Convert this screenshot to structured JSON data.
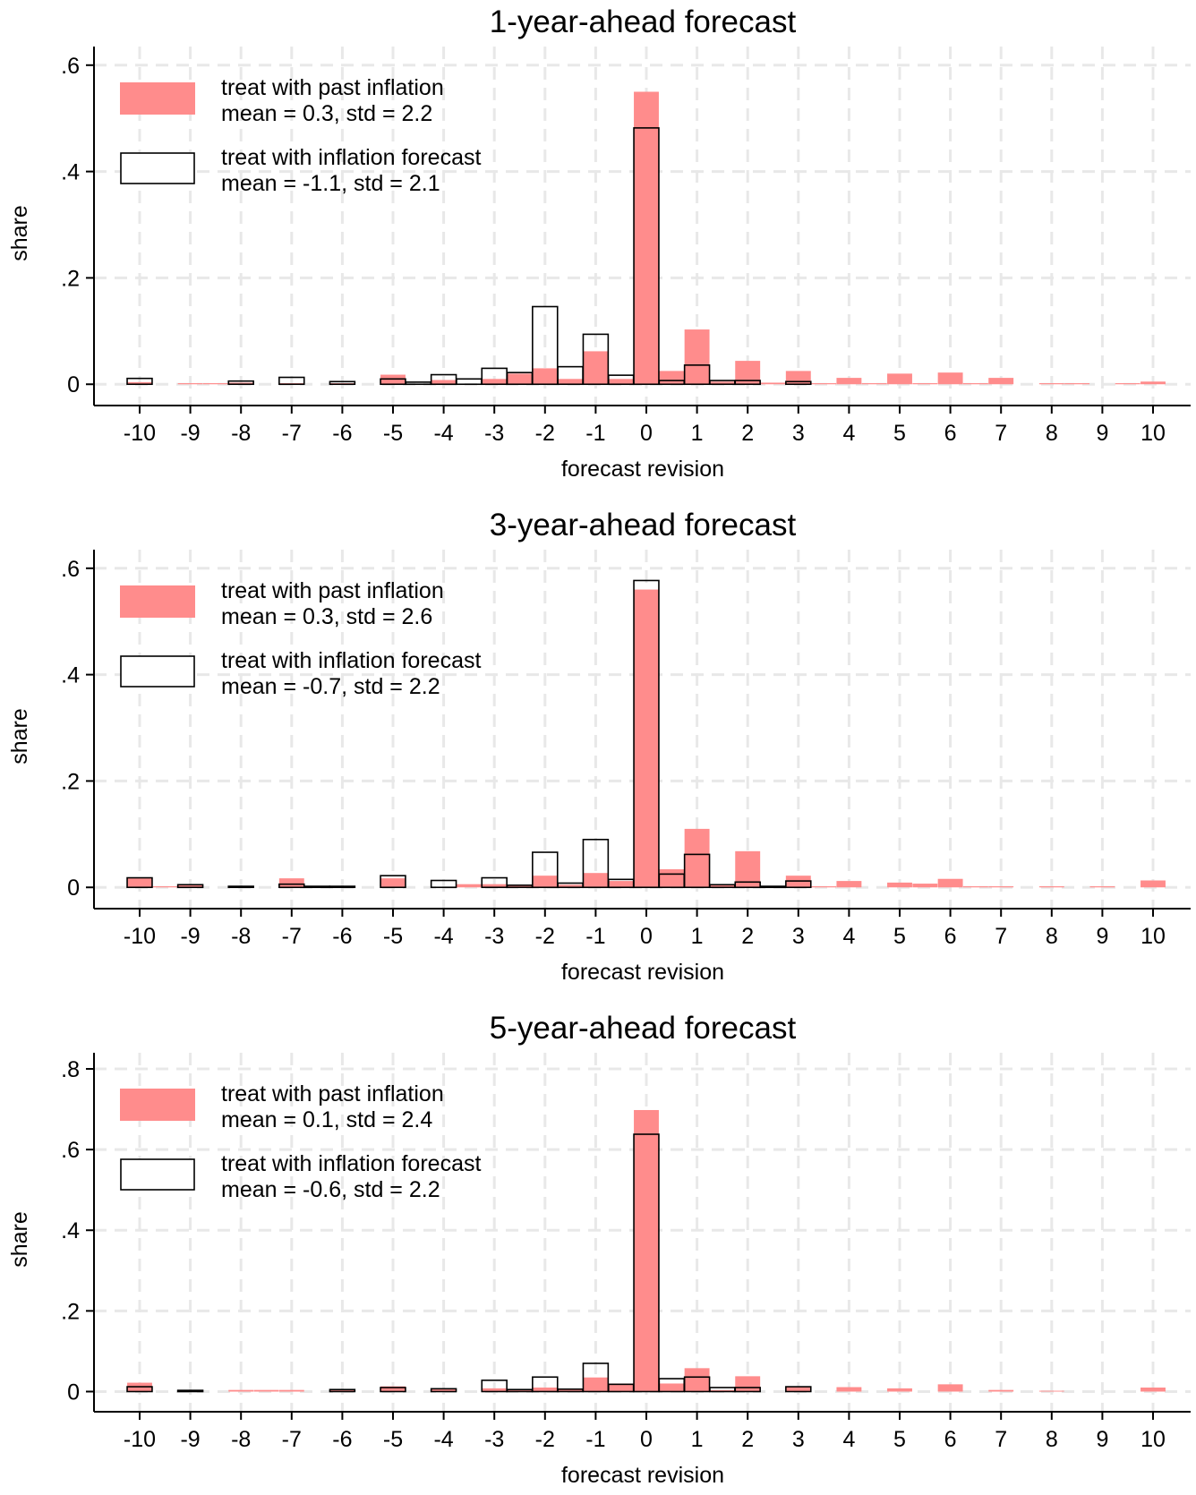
{
  "figure": {
    "legend_labels": {
      "past": "treat with past inflation",
      "forecast": "treat with inflation forecast"
    },
    "colors": {
      "past_fill": "#ff8c8c",
      "forecast_fill": "#ffffff",
      "forecast_stroke": "#000000",
      "grid": "#e8e8e8",
      "axis": "#000000"
    }
  },
  "chart_data": [
    {
      "type": "bar",
      "title": "1-year-ahead forecast",
      "xlabel": "forecast revision",
      "ylabel": "share",
      "x_ticks": [
        "-10",
        "-9",
        "-8",
        "-7",
        "-6",
        "-5",
        "-4",
        "-3",
        "-2",
        "-1",
        "0",
        "1",
        "2",
        "3",
        "4",
        "5",
        "6",
        "7",
        "8",
        "9",
        "10"
      ],
      "y_ticks": [
        {
          "value": 0,
          "label": "0"
        },
        {
          "value": 0.2,
          "label": ".2"
        },
        {
          "value": 0.4,
          "label": ".4"
        },
        {
          "value": 0.6,
          "label": ".6"
        }
      ],
      "ylim": [
        -0.04,
        0.635
      ],
      "bin_width": 0.5,
      "grid": true,
      "legend_position": "top-left",
      "series": [
        {
          "name": "treat with past inflation",
          "stats": "mean = 0.3, std = 2.2",
          "style": "filled",
          "points": [
            [
              -10,
              0.004
            ],
            [
              -9,
              0.002
            ],
            [
              -8.5,
              0.002
            ],
            [
              -8,
              0.003
            ],
            [
              -7,
              0.002
            ],
            [
              -6,
              0.002
            ],
            [
              -5,
              0.018
            ],
            [
              -4,
              0.008
            ],
            [
              -3,
              0.01
            ],
            [
              -2.5,
              0.02
            ],
            [
              -2,
              0.03
            ],
            [
              -1.5,
              0.01
            ],
            [
              -1,
              0.062
            ],
            [
              -0.5,
              0.01
            ],
            [
              0,
              0.55
            ],
            [
              0.5,
              0.025
            ],
            [
              1,
              0.103
            ],
            [
              1.5,
              0.005
            ],
            [
              2,
              0.044
            ],
            [
              2.5,
              0.003
            ],
            [
              3,
              0.025
            ],
            [
              3.5,
              0.002
            ],
            [
              4,
              0.012
            ],
            [
              4.5,
              0.002
            ],
            [
              5,
              0.02
            ],
            [
              5.5,
              0.002
            ],
            [
              6,
              0.022
            ],
            [
              6.5,
              0.002
            ],
            [
              7,
              0.012
            ],
            [
              8,
              0.002
            ],
            [
              8.5,
              0.002
            ],
            [
              9.5,
              0.002
            ],
            [
              10,
              0.005
            ]
          ]
        },
        {
          "name": "treat with inflation forecast",
          "stats": "mean = -1.1, std = 2.1",
          "style": "outline",
          "points": [
            [
              -10,
              0.011
            ],
            [
              -8,
              0.006
            ],
            [
              -7,
              0.013
            ],
            [
              -6,
              0.005
            ],
            [
              -5,
              0.01
            ],
            [
              -4.5,
              0.004
            ],
            [
              -4,
              0.018
            ],
            [
              -3.5,
              0.01
            ],
            [
              -3,
              0.03
            ],
            [
              -2.5,
              0.022
            ],
            [
              -2,
              0.146
            ],
            [
              -1.5,
              0.033
            ],
            [
              -1,
              0.094
            ],
            [
              -0.5,
              0.017
            ],
            [
              0,
              0.482
            ],
            [
              0.5,
              0.007
            ],
            [
              1,
              0.036
            ],
            [
              1.5,
              0.007
            ],
            [
              2,
              0.007
            ],
            [
              3,
              0.005
            ]
          ]
        }
      ]
    },
    {
      "type": "bar",
      "title": "3-year-ahead forecast",
      "xlabel": "forecast revision",
      "ylabel": "share",
      "x_ticks": [
        "-10",
        "-9",
        "-8",
        "-7",
        "-6",
        "-5",
        "-4",
        "-3",
        "-2",
        "-1",
        "0",
        "1",
        "2",
        "3",
        "4",
        "5",
        "6",
        "7",
        "8",
        "9",
        "10"
      ],
      "y_ticks": [
        {
          "value": 0,
          "label": "0"
        },
        {
          "value": 0.2,
          "label": ".2"
        },
        {
          "value": 0.4,
          "label": ".4"
        },
        {
          "value": 0.6,
          "label": ".6"
        }
      ],
      "ylim": [
        -0.04,
        0.635
      ],
      "bin_width": 0.5,
      "grid": true,
      "legend_position": "top-left",
      "series": [
        {
          "name": "treat with past inflation",
          "stats": "mean = 0.3, std = 2.6",
          "style": "filled",
          "points": [
            [
              -10,
              0.017
            ],
            [
              -9.5,
              0.002
            ],
            [
              -9,
              0.004
            ],
            [
              -8,
              0.002
            ],
            [
              -7,
              0.017
            ],
            [
              -6.5,
              0.002
            ],
            [
              -6,
              0.002
            ],
            [
              -5,
              0.017
            ],
            [
              -3.5,
              0.006
            ],
            [
              -3,
              0.006
            ],
            [
              -2.5,
              0.004
            ],
            [
              -2,
              0.022
            ],
            [
              -1.5,
              0.005
            ],
            [
              -1,
              0.027
            ],
            [
              -0.5,
              0.012
            ],
            [
              0,
              0.56
            ],
            [
              0.5,
              0.034
            ],
            [
              1,
              0.11
            ],
            [
              1.5,
              0.005
            ],
            [
              2,
              0.068
            ],
            [
              2.5,
              0.002
            ],
            [
              3,
              0.022
            ],
            [
              3.5,
              0.002
            ],
            [
              4,
              0.012
            ],
            [
              5,
              0.009
            ],
            [
              5.5,
              0.007
            ],
            [
              6,
              0.016
            ],
            [
              6.5,
              0.002
            ],
            [
              7,
              0.002
            ],
            [
              8,
              0.002
            ],
            [
              9,
              0.002
            ],
            [
              10,
              0.013
            ]
          ]
        },
        {
          "name": "treat with inflation forecast",
          "stats": "mean = -0.7, std = 2.2",
          "style": "outline",
          "points": [
            [
              -10,
              0.018
            ],
            [
              -9,
              0.005
            ],
            [
              -8,
              0.002
            ],
            [
              -7,
              0.006
            ],
            [
              -6.5,
              0.002
            ],
            [
              -6,
              0.002
            ],
            [
              -5,
              0.022
            ],
            [
              -4,
              0.013
            ],
            [
              -3,
              0.018
            ],
            [
              -2.5,
              0.004
            ],
            [
              -2,
              0.066
            ],
            [
              -1.5,
              0.008
            ],
            [
              -1,
              0.09
            ],
            [
              -0.5,
              0.015
            ],
            [
              0,
              0.577
            ],
            [
              0.5,
              0.025
            ],
            [
              1,
              0.062
            ],
            [
              1.5,
              0.005
            ],
            [
              2,
              0.01
            ],
            [
              2.5,
              0.002
            ],
            [
              3,
              0.012
            ]
          ]
        }
      ]
    },
    {
      "type": "bar",
      "title": "5-year-ahead forecast",
      "xlabel": "forecast revision",
      "ylabel": "share",
      "x_ticks": [
        "-10",
        "-9",
        "-8",
        "-7",
        "-6",
        "-5",
        "-4",
        "-3",
        "-2",
        "-1",
        "0",
        "1",
        "2",
        "3",
        "4",
        "5",
        "6",
        "7",
        "8",
        "9",
        "10"
      ],
      "y_ticks": [
        {
          "value": 0,
          "label": "0"
        },
        {
          "value": 0.2,
          "label": ".2"
        },
        {
          "value": 0.4,
          "label": ".4"
        },
        {
          "value": 0.6,
          "label": ".6"
        },
        {
          "value": 0.8,
          "label": ".8"
        }
      ],
      "ylim": [
        -0.05,
        0.84
      ],
      "bin_width": 0.5,
      "grid": true,
      "legend_position": "top-left",
      "series": [
        {
          "name": "treat with past inflation",
          "stats": "mean = 0.1, std = 2.4",
          "style": "filled",
          "points": [
            [
              -10,
              0.022
            ],
            [
              -8,
              0.004
            ],
            [
              -7.5,
              0.004
            ],
            [
              -7,
              0.004
            ],
            [
              -6,
              0.004
            ],
            [
              -5,
              0.013
            ],
            [
              -4,
              0.006
            ],
            [
              -3,
              0.008
            ],
            [
              -2.5,
              0.005
            ],
            [
              -2,
              0.01
            ],
            [
              -1.5,
              0.005
            ],
            [
              -1,
              0.035
            ],
            [
              -0.5,
              0.02
            ],
            [
              0,
              0.698
            ],
            [
              0.5,
              0.02
            ],
            [
              1,
              0.058
            ],
            [
              1.5,
              0.004
            ],
            [
              2,
              0.038
            ],
            [
              3,
              0.012
            ],
            [
              4,
              0.011
            ],
            [
              5,
              0.008
            ],
            [
              6,
              0.018
            ],
            [
              7,
              0.004
            ],
            [
              8,
              0.002
            ],
            [
              10,
              0.01
            ]
          ]
        },
        {
          "name": "treat with inflation forecast",
          "stats": "mean = -0.6, std = 2.2",
          "style": "outline",
          "points": [
            [
              -10,
              0.012
            ],
            [
              -9,
              0.003
            ],
            [
              -6,
              0.005
            ],
            [
              -5,
              0.01
            ],
            [
              -4,
              0.007
            ],
            [
              -3,
              0.028
            ],
            [
              -2.5,
              0.005
            ],
            [
              -2,
              0.036
            ],
            [
              -1.5,
              0.006
            ],
            [
              -1,
              0.07
            ],
            [
              -0.5,
              0.018
            ],
            [
              0,
              0.638
            ],
            [
              0.5,
              0.032
            ],
            [
              1,
              0.036
            ],
            [
              1.5,
              0.01
            ],
            [
              2,
              0.01
            ],
            [
              3,
              0.012
            ]
          ]
        }
      ]
    }
  ]
}
